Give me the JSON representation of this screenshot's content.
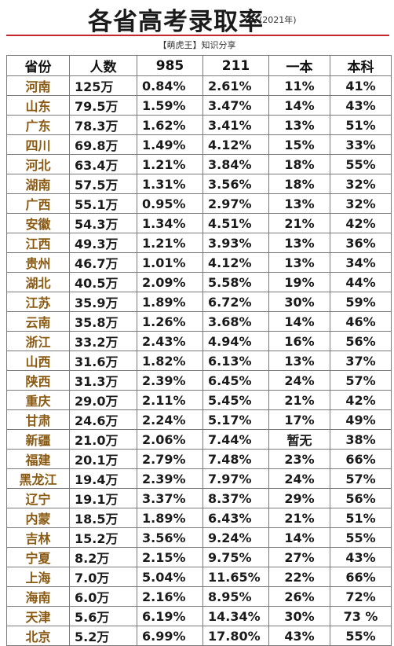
{
  "header": {
    "title": "各省高考录取率",
    "year": "(2021年)",
    "subtitle": "【萌虎王】知识分享"
  },
  "table": {
    "columns": [
      "省份",
      "人数",
      "985",
      "211",
      "一本",
      "本科"
    ],
    "rows": [
      [
        "河南",
        "125万",
        "0.84%",
        "2.61%",
        "11%",
        "41%"
      ],
      [
        "山东",
        "79.5万",
        "1.59%",
        "3.47%",
        "14%",
        "43%"
      ],
      [
        "广东",
        "78.3万",
        "1.62%",
        "3.41%",
        "13%",
        "51%"
      ],
      [
        "四川",
        "69.8万",
        "1.49%",
        "4.12%",
        "15%",
        "33%"
      ],
      [
        "河北",
        "63.4万",
        "1.21%",
        "3.84%",
        "18%",
        "55%"
      ],
      [
        "湖南",
        "57.5万",
        "1.31%",
        "3.56%",
        "18%",
        "32%"
      ],
      [
        "广西",
        "55.1万",
        "0.95%",
        "2.97%",
        "13%",
        "32%"
      ],
      [
        "安徽",
        "54.3万",
        "1.34%",
        "4.51%",
        "21%",
        "42%"
      ],
      [
        "江西",
        "49.3万",
        "1.21%",
        "3.93%",
        "13%",
        "36%"
      ],
      [
        "贵州",
        "46.7万",
        "1.01%",
        "4.12%",
        "13%",
        "34%"
      ],
      [
        "湖北",
        "40.5万",
        "2.09%",
        "5.58%",
        "19%",
        "44%"
      ],
      [
        "江苏",
        "35.9万",
        "1.89%",
        "6.72%",
        "30%",
        "59%"
      ],
      [
        "云南",
        "35.8万",
        "1.26%",
        "3.68%",
        "14%",
        "46%"
      ],
      [
        "浙江",
        "33.2万",
        "2.43%",
        "4.94%",
        "16%",
        "56%"
      ],
      [
        "山西",
        "31.6万",
        "1.82%",
        "6.13%",
        "13%",
        "37%"
      ],
      [
        "陕西",
        "31.3万",
        "2.39%",
        "6.45%",
        "24%",
        "57%"
      ],
      [
        "重庆",
        "29.0万",
        "2.11%",
        "5.45%",
        "21%",
        "42%"
      ],
      [
        "甘肃",
        "24.6万",
        "2.24%",
        "5.17%",
        "17%",
        "49%"
      ],
      [
        "新疆",
        "21.0万",
        "2.06%",
        "7.44%",
        "暂无",
        "38%"
      ],
      [
        "福建",
        "20.1万",
        "2.79%",
        "7.48%",
        "23%",
        "66%"
      ],
      [
        "黑龙江",
        "19.4万",
        "2.39%",
        "7.97%",
        "24%",
        "57%"
      ],
      [
        "辽宁",
        "19.1万",
        "3.37%",
        "8.37%",
        "29%",
        "56%"
      ],
      [
        "内蒙",
        "18.5万",
        "1.89%",
        "6.43%",
        "21%",
        "51%"
      ],
      [
        "吉林",
        "15.2万",
        "3.56%",
        "9.24%",
        "14%",
        "55%"
      ],
      [
        "宁夏",
        "8.2万",
        "2.15%",
        "9.75%",
        "27%",
        "43%"
      ],
      [
        "上海",
        "7.0万",
        "5.04%",
        "11.65%",
        "22%",
        "66%"
      ],
      [
        "海南",
        "6.0万",
        "2.16%",
        "8.95%",
        "26%",
        "72%"
      ],
      [
        "天津",
        "5.6万",
        "6.19%",
        "14.34%",
        "30%",
        "73 %"
      ],
      [
        "北京",
        "5.2万",
        "6.99%",
        "17.80%",
        "43%",
        "55%"
      ]
    ]
  }
}
